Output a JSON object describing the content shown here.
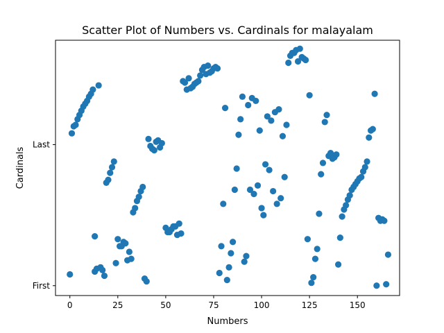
{
  "chart_data": {
    "type": "scatter",
    "title": "Scatter Plot of Numbers vs. Cardinals for malayalam",
    "xlabel": "Numbers",
    "ylabel": "Cardinals",
    "xlim": [
      -7.5,
      172
    ],
    "ylim": [
      -0.07,
      1.74
    ],
    "xticks": [
      0,
      25,
      50,
      75,
      100,
      125,
      150
    ],
    "xtick_labels": [
      "0",
      "25",
      "50",
      "75",
      "100",
      "125",
      "150"
    ],
    "yticks": [
      0,
      1
    ],
    "ytick_labels": [
      "First",
      "Last"
    ],
    "grid": false,
    "legend": "none",
    "marker_color": "#1f77b4",
    "points": [
      {
        "x": 0,
        "y": 0.08
      },
      {
        "x": 1,
        "y": 1.08
      },
      {
        "x": 2,
        "y": 1.13
      },
      {
        "x": 3,
        "y": 1.14
      },
      {
        "x": 4,
        "y": 1.18
      },
      {
        "x": 5,
        "y": 1.21
      },
      {
        "x": 6,
        "y": 1.24
      },
      {
        "x": 7,
        "y": 1.27
      },
      {
        "x": 8,
        "y": 1.29
      },
      {
        "x": 9,
        "y": 1.31
      },
      {
        "x": 10,
        "y": 1.34
      },
      {
        "x": 11,
        "y": 1.36
      },
      {
        "x": 12,
        "y": 1.39
      },
      {
        "x": 13,
        "y": 0.1
      },
      {
        "x": 13,
        "y": 0.35
      },
      {
        "x": 14,
        "y": 0.12
      },
      {
        "x": 15,
        "y": 1.42
      },
      {
        "x": 16,
        "y": 0.13
      },
      {
        "x": 17,
        "y": 0.11
      },
      {
        "x": 18,
        "y": 0.07
      },
      {
        "x": 19,
        "y": 0.73
      },
      {
        "x": 20,
        "y": 0.75
      },
      {
        "x": 21,
        "y": 0.8
      },
      {
        "x": 22,
        "y": 0.84
      },
      {
        "x": 23,
        "y": 0.88
      },
      {
        "x": 24,
        "y": 0.16
      },
      {
        "x": 25,
        "y": 0.33
      },
      {
        "x": 26,
        "y": 0.28
      },
      {
        "x": 27,
        "y": 0.28
      },
      {
        "x": 28,
        "y": 0.31
      },
      {
        "x": 29,
        "y": 0.3
      },
      {
        "x": 30,
        "y": 0.18
      },
      {
        "x": 31,
        "y": 0.24
      },
      {
        "x": 32,
        "y": 0.19
      },
      {
        "x": 33,
        "y": 0.52
      },
      {
        "x": 34,
        "y": 0.55
      },
      {
        "x": 35,
        "y": 0.6
      },
      {
        "x": 36,
        "y": 0.63
      },
      {
        "x": 37,
        "y": 0.67
      },
      {
        "x": 38,
        "y": 0.7
      },
      {
        "x": 39,
        "y": 0.05
      },
      {
        "x": 40,
        "y": 0.03
      },
      {
        "x": 41,
        "y": 1.04
      },
      {
        "x": 42,
        "y": 0.99
      },
      {
        "x": 43,
        "y": 0.97
      },
      {
        "x": 44,
        "y": 0.96
      },
      {
        "x": 45,
        "y": 1.02
      },
      {
        "x": 46,
        "y": 1.03
      },
      {
        "x": 47,
        "y": 0.98
      },
      {
        "x": 48,
        "y": 1.01
      },
      {
        "x": 50,
        "y": 0.41
      },
      {
        "x": 51,
        "y": 0.38
      },
      {
        "x": 52,
        "y": 0.38
      },
      {
        "x": 53,
        "y": 0.4
      },
      {
        "x": 54,
        "y": 0.42
      },
      {
        "x": 55,
        "y": 0.42
      },
      {
        "x": 56,
        "y": 0.36
      },
      {
        "x": 57,
        "y": 0.44
      },
      {
        "x": 58,
        "y": 0.37
      },
      {
        "x": 59,
        "y": 1.45
      },
      {
        "x": 60,
        "y": 1.44
      },
      {
        "x": 61,
        "y": 1.39
      },
      {
        "x": 62,
        "y": 1.47
      },
      {
        "x": 63,
        "y": 1.4
      },
      {
        "x": 64,
        "y": 1.41
      },
      {
        "x": 65,
        "y": 1.43
      },
      {
        "x": 66,
        "y": 1.44
      },
      {
        "x": 67,
        "y": 1.45
      },
      {
        "x": 68,
        "y": 1.49
      },
      {
        "x": 69,
        "y": 1.53
      },
      {
        "x": 70,
        "y": 1.55
      },
      {
        "x": 71,
        "y": 1.5
      },
      {
        "x": 72,
        "y": 1.56
      },
      {
        "x": 73,
        "y": 1.51
      },
      {
        "x": 74,
        "y": 1.52
      },
      {
        "x": 75,
        "y": 1.54
      },
      {
        "x": 76,
        "y": 1.55
      },
      {
        "x": 77,
        "y": 1.54
      },
      {
        "x": 78,
        "y": 0.09
      },
      {
        "x": 79,
        "y": 0.28
      },
      {
        "x": 80,
        "y": 0.58
      },
      {
        "x": 81,
        "y": 1.26
      },
      {
        "x": 82,
        "y": 0.04
      },
      {
        "x": 83,
        "y": 0.13
      },
      {
        "x": 84,
        "y": 0.23
      },
      {
        "x": 85,
        "y": 0.31
      },
      {
        "x": 86,
        "y": 0.68
      },
      {
        "x": 87,
        "y": 0.83
      },
      {
        "x": 88,
        "y": 1.07
      },
      {
        "x": 89,
        "y": 1.18
      },
      {
        "x": 90,
        "y": 1.34
      },
      {
        "x": 91,
        "y": 0.17
      },
      {
        "x": 92,
        "y": 0.21
      },
      {
        "x": 93,
        "y": 1.28
      },
      {
        "x": 94,
        "y": 0.68
      },
      {
        "x": 95,
        "y": 1.33
      },
      {
        "x": 96,
        "y": 0.65
      },
      {
        "x": 97,
        "y": 1.31
      },
      {
        "x": 98,
        "y": 0.71
      },
      {
        "x": 99,
        "y": 1.1
      },
      {
        "x": 100,
        "y": 0.55
      },
      {
        "x": 101,
        "y": 0.5
      },
      {
        "x": 102,
        "y": 0.86
      },
      {
        "x": 103,
        "y": 1.2
      },
      {
        "x": 104,
        "y": 0.82
      },
      {
        "x": 105,
        "y": 1.17
      },
      {
        "x": 106,
        "y": 0.67
      },
      {
        "x": 107,
        "y": 1.23
      },
      {
        "x": 108,
        "y": 0.58
      },
      {
        "x": 109,
        "y": 1.25
      },
      {
        "x": 110,
        "y": 0.62
      },
      {
        "x": 111,
        "y": 1.06
      },
      {
        "x": 112,
        "y": 0.77
      },
      {
        "x": 113,
        "y": 1.14
      },
      {
        "x": 114,
        "y": 1.58
      },
      {
        "x": 115,
        "y": 1.63
      },
      {
        "x": 116,
        "y": 1.65
      },
      {
        "x": 117,
        "y": 1.65
      },
      {
        "x": 118,
        "y": 1.67
      },
      {
        "x": 119,
        "y": 1.59
      },
      {
        "x": 120,
        "y": 1.68
      },
      {
        "x": 121,
        "y": 1.62
      },
      {
        "x": 122,
        "y": 1.61
      },
      {
        "x": 123,
        "y": 1.6
      },
      {
        "x": 124,
        "y": 0.33
      },
      {
        "x": 125,
        "y": 1.35
      },
      {
        "x": 126,
        "y": 0.02
      },
      {
        "x": 127,
        "y": 0.06
      },
      {
        "x": 128,
        "y": 0.19
      },
      {
        "x": 129,
        "y": 0.26
      },
      {
        "x": 130,
        "y": 0.51
      },
      {
        "x": 131,
        "y": 0.79
      },
      {
        "x": 132,
        "y": 0.87
      },
      {
        "x": 133,
        "y": 1.16
      },
      {
        "x": 134,
        "y": 1.21
      },
      {
        "x": 135,
        "y": 0.92
      },
      {
        "x": 136,
        "y": 0.94
      },
      {
        "x": 137,
        "y": 0.9
      },
      {
        "x": 138,
        "y": 0.91
      },
      {
        "x": 139,
        "y": 0.93
      },
      {
        "x": 140,
        "y": 0.15
      },
      {
        "x": 141,
        "y": 0.34
      },
      {
        "x": 142,
        "y": 0.49
      },
      {
        "x": 143,
        "y": 0.54
      },
      {
        "x": 144,
        "y": 0.57
      },
      {
        "x": 145,
        "y": 0.61
      },
      {
        "x": 146,
        "y": 0.64
      },
      {
        "x": 147,
        "y": 0.68
      },
      {
        "x": 148,
        "y": 0.7
      },
      {
        "x": 149,
        "y": 0.72
      },
      {
        "x": 150,
        "y": 0.74
      },
      {
        "x": 151,
        "y": 0.76
      },
      {
        "x": 152,
        "y": 0.77
      },
      {
        "x": 153,
        "y": 0.81
      },
      {
        "x": 154,
        "y": 0.84
      },
      {
        "x": 155,
        "y": 0.88
      },
      {
        "x": 156,
        "y": 1.05
      },
      {
        "x": 157,
        "y": 1.1
      },
      {
        "x": 158,
        "y": 1.11
      },
      {
        "x": 159,
        "y": 1.36
      },
      {
        "x": 160,
        "y": 0.0
      },
      {
        "x": 161,
        "y": 0.48
      },
      {
        "x": 162,
        "y": 0.46
      },
      {
        "x": 163,
        "y": 0.47
      },
      {
        "x": 164,
        "y": 0.46
      },
      {
        "x": 165,
        "y": 0.01
      },
      {
        "x": 166,
        "y": 0.22
      }
    ]
  }
}
